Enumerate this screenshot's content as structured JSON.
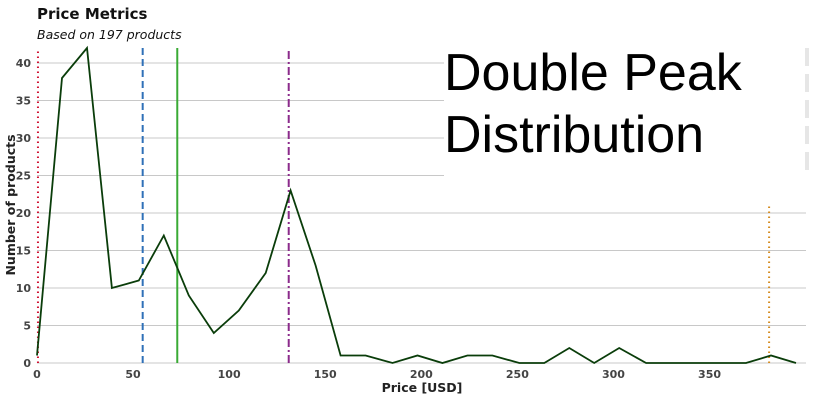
{
  "chart_data": {
    "type": "line",
    "title": "Price Metrics",
    "subtitle": "Based on 197 products",
    "xlabel": "Price [USD]",
    "ylabel": "Number of products",
    "xlim": [
      0,
      395
    ],
    "ylim": [
      0,
      42
    ],
    "x_ticks": [
      0,
      50,
      100,
      150,
      200,
      250,
      300,
      350
    ],
    "y_ticks": [
      0,
      5,
      10,
      15,
      20,
      25,
      30,
      35,
      40
    ],
    "grid": "horizontal",
    "series": [
      {
        "x": [
          0,
          13,
          26,
          39,
          53,
          66,
          79,
          92,
          105,
          119,
          132,
          145,
          158,
          171,
          185,
          198,
          211,
          224,
          237,
          251,
          264,
          277,
          290,
          303,
          317,
          330,
          343,
          356,
          369,
          382,
          395
        ],
        "y": [
          1,
          38,
          42,
          10,
          11,
          17,
          9,
          4,
          7,
          12,
          23,
          13,
          1,
          1,
          0,
          1,
          0,
          1,
          1,
          0,
          0,
          2,
          0,
          2,
          0,
          0,
          0,
          0,
          0,
          1,
          0
        ],
        "color": "#0a3d0a"
      }
    ],
    "reference_lines": [
      {
        "x": 0.5,
        "style": "dotted",
        "color": "#d01030",
        "ymax": 42
      },
      {
        "x": 55,
        "style": "dashed",
        "color": "#2f70b8",
        "ymax": 42
      },
      {
        "x": 73,
        "style": "solid",
        "color": "#3aaa35",
        "ymax": 42
      },
      {
        "x": 131,
        "style": "dashdot",
        "color": "#8b2b8b",
        "ymax": 42
      },
      {
        "x": 381,
        "style": "dotted",
        "color": "#d48a1c",
        "ymax": 21
      }
    ]
  },
  "overlay": {
    "line1": "Double Peak",
    "line2": "Distribution"
  }
}
